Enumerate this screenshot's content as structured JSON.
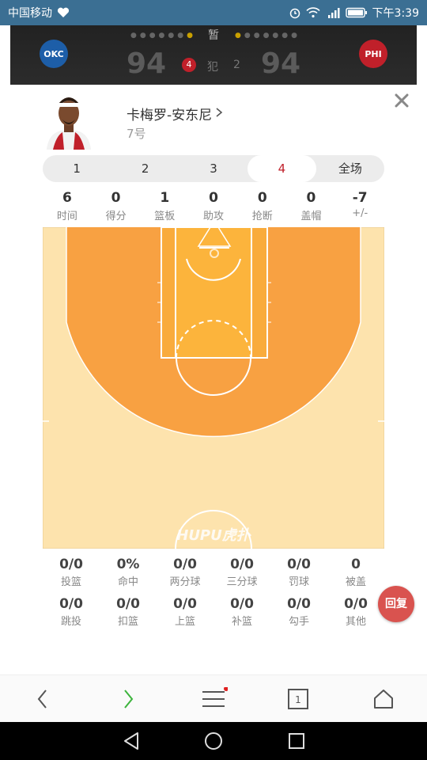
{
  "status_bar": {
    "carrier": "中国移动",
    "time": "下午3:39"
  },
  "scoreboard": {
    "period": "暂",
    "home": {
      "abbr": "OKC",
      "color": "#1d5ea8",
      "score": "94",
      "fouls": "4"
    },
    "away": {
      "abbr": "PHI",
      "color": "#c0202a",
      "score": "94",
      "fouls": "2"
    },
    "foul_label": "犯"
  },
  "player": {
    "name": "卡梅罗-安东尼",
    "number": "7号"
  },
  "tabs": [
    {
      "label": "1",
      "active": false
    },
    {
      "label": "2",
      "active": false
    },
    {
      "label": "3",
      "active": false
    },
    {
      "label": "4",
      "active": true
    },
    {
      "label": "全场",
      "active": false
    }
  ],
  "stats": [
    {
      "value": "6",
      "label": "时间"
    },
    {
      "value": "0",
      "label": "得分"
    },
    {
      "value": "1",
      "label": "篮板"
    },
    {
      "value": "0",
      "label": "助攻"
    },
    {
      "value": "0",
      "label": "抢断"
    },
    {
      "value": "0",
      "label": "盖帽"
    },
    {
      "value": "-7",
      "label": "+/-"
    }
  ],
  "court": {
    "watermark": "HUPU虎扑",
    "colors": {
      "floor": "#fde3ad",
      "three_zone": "#f8a142",
      "paint": "#fcb43c"
    }
  },
  "shot_stats": [
    [
      {
        "value": "0/0",
        "label": "投篮"
      },
      {
        "value": "0%",
        "label": "命中"
      },
      {
        "value": "0/0",
        "label": "两分球"
      },
      {
        "value": "0/0",
        "label": "三分球"
      },
      {
        "value": "0/0",
        "label": "罚球"
      },
      {
        "value": "0",
        "label": "被盖"
      }
    ],
    [
      {
        "value": "0/0",
        "label": "跳投"
      },
      {
        "value": "0/0",
        "label": "扣篮"
      },
      {
        "value": "0/0",
        "label": "上篮"
      },
      {
        "value": "0/0",
        "label": "补篮"
      },
      {
        "value": "0/0",
        "label": "勾手"
      },
      {
        "value": "0/0",
        "label": "其他"
      }
    ]
  ],
  "reply_button": "回复",
  "toolbar": {
    "tabs_count": "1"
  }
}
